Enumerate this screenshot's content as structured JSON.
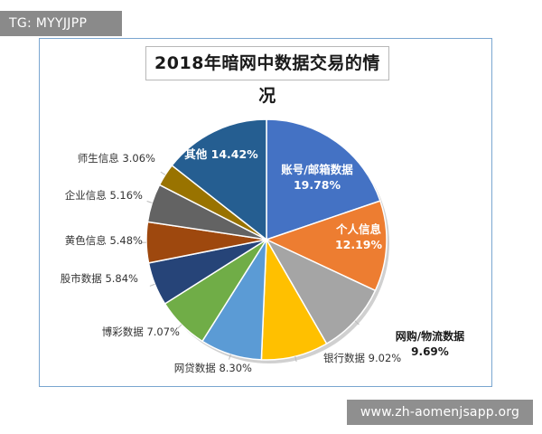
{
  "watermarks": {
    "top": "TG: MYYJJPP",
    "bottom": "www.zh-aomenjsapp.org"
  },
  "chart_data": {
    "type": "pie",
    "title": "2018年暗网中数据交易的情况",
    "slices": [
      {
        "label": "账号/邮箱数据",
        "value": 19.78,
        "value_label": "19.78%",
        "color": "#4472c4"
      },
      {
        "label": "个人信息",
        "value": 12.19,
        "value_label": "12.19%",
        "color": "#ed7d31"
      },
      {
        "label": "网购/物流数据",
        "value": 9.69,
        "value_label": "9.69%",
        "color": "#a5a5a5"
      },
      {
        "label": "银行数据",
        "value": 9.02,
        "value_label": "9.02%",
        "color": "#ffc000"
      },
      {
        "label": "网贷数据",
        "value": 8.3,
        "value_label": "8.30%",
        "color": "#5b9bd5"
      },
      {
        "label": "博彩数据",
        "value": 7.07,
        "value_label": "7.07%",
        "color": "#70ad47"
      },
      {
        "label": "股市数据",
        "value": 5.84,
        "value_label": "5.84%",
        "color": "#264478"
      },
      {
        "label": "黄色信息",
        "value": 5.48,
        "value_label": "5.48%",
        "color": "#9e480e"
      },
      {
        "label": "企业信息",
        "value": 5.16,
        "value_label": "5.16%",
        "color": "#636363"
      },
      {
        "label": "师生信息",
        "value": 3.06,
        "value_label": "3.06%",
        "color": "#997300"
      },
      {
        "label": "其他",
        "value": 14.42,
        "value_label": "14.42%",
        "color": "#255e91"
      }
    ]
  }
}
